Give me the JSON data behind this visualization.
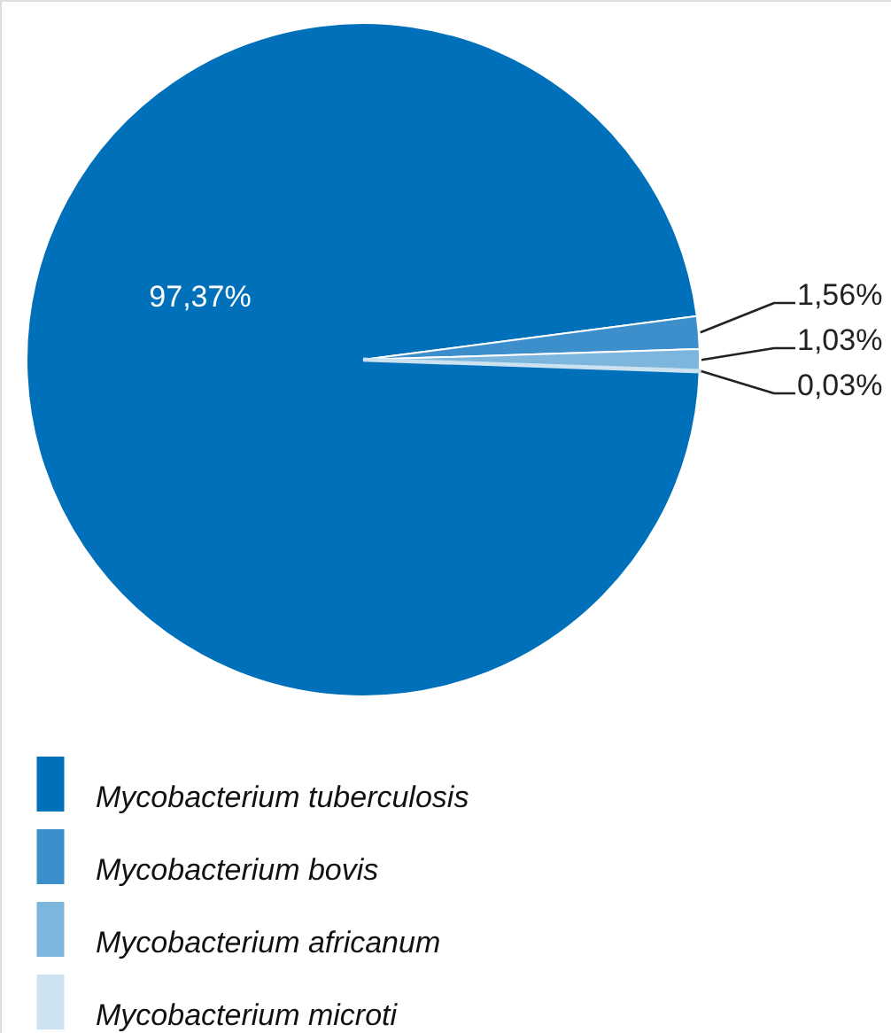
{
  "chart_data": {
    "type": "pie",
    "categories": [
      "Mycobacterium tuberculosis",
      "Mycobacterium bovis",
      "Mycobacterium africanum",
      "Mycobacterium microti"
    ],
    "values": [
      97.37,
      1.56,
      1.03,
      0.03
    ],
    "colors": [
      "#0070ba",
      "#3c8fcb",
      "#7db6dd",
      "#cce2f1"
    ],
    "value_labels": [
      "97,37%",
      "1,56%",
      "1,03%",
      "0,03%"
    ],
    "legend": "bottom"
  }
}
